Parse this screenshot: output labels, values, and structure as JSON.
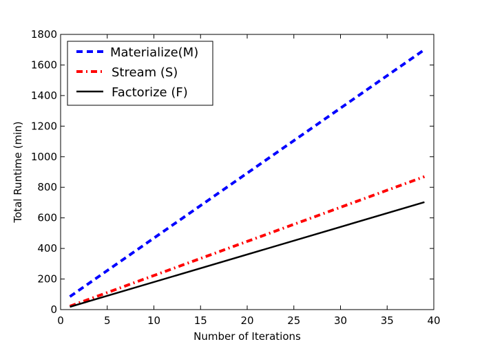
{
  "chart_data": {
    "type": "line",
    "xlabel": "Number of Iterations",
    "ylabel": "Total Runtime (min)",
    "xlim": [
      0,
      40
    ],
    "ylim": [
      0,
      1800
    ],
    "xticks": [
      0,
      5,
      10,
      15,
      20,
      25,
      30,
      35,
      40
    ],
    "yticks": [
      0,
      200,
      400,
      600,
      800,
      1000,
      1200,
      1400,
      1600,
      1800
    ],
    "grid": false,
    "legend_position": "top-left",
    "series": [
      {
        "name": "Materialize(M)",
        "color": "#0000ff",
        "style": "dashed",
        "x": [
          1,
          39
        ],
        "y": [
          85,
          1700
        ]
      },
      {
        "name": "Stream (S)",
        "color": "#ff0000",
        "style": "dash-dot",
        "x": [
          1,
          39
        ],
        "y": [
          22,
          870
        ]
      },
      {
        "name": "Factorize (F)",
        "color": "#000000",
        "style": "solid",
        "x": [
          1,
          39
        ],
        "y": [
          18,
          703
        ]
      }
    ]
  }
}
